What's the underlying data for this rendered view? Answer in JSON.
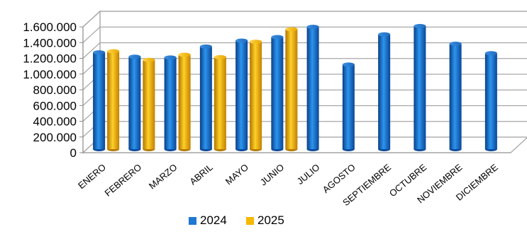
{
  "chart_data": {
    "type": "bar",
    "title": "",
    "xlabel": "",
    "ylabel": "",
    "categories": [
      "ENERO",
      "FEBRERO",
      "MARZO",
      "ABRIL",
      "MAYO",
      "JUNIO",
      "JULIO",
      "AGOSTO",
      "SEPTIEMBRE",
      "OCTUBRE",
      "NOVIEMBRE",
      "DICIEMBRE"
    ],
    "series": [
      {
        "name": "2024",
        "color": "#1f78d1",
        "values": [
          1230000,
          1175000,
          1165000,
          1305000,
          1380000,
          1425000,
          1555000,
          1075000,
          1460000,
          1565000,
          1340000,
          1220000
        ]
      },
      {
        "name": "2025",
        "color": "#f6b800",
        "values": [
          1245000,
          1135000,
          1200000,
          1170000,
          1365000,
          1525000,
          null,
          null,
          null,
          null,
          null,
          null
        ]
      }
    ],
    "ylim": [
      0,
      1600000
    ],
    "yticks": [
      "0",
      "200.000",
      "400.000",
      "600.000",
      "800.000",
      "1.000.000",
      "1.200.000",
      "1.400.000",
      "1.600.000"
    ],
    "grid": true,
    "legend_position": "bottom",
    "style": "3d-cylinder"
  }
}
